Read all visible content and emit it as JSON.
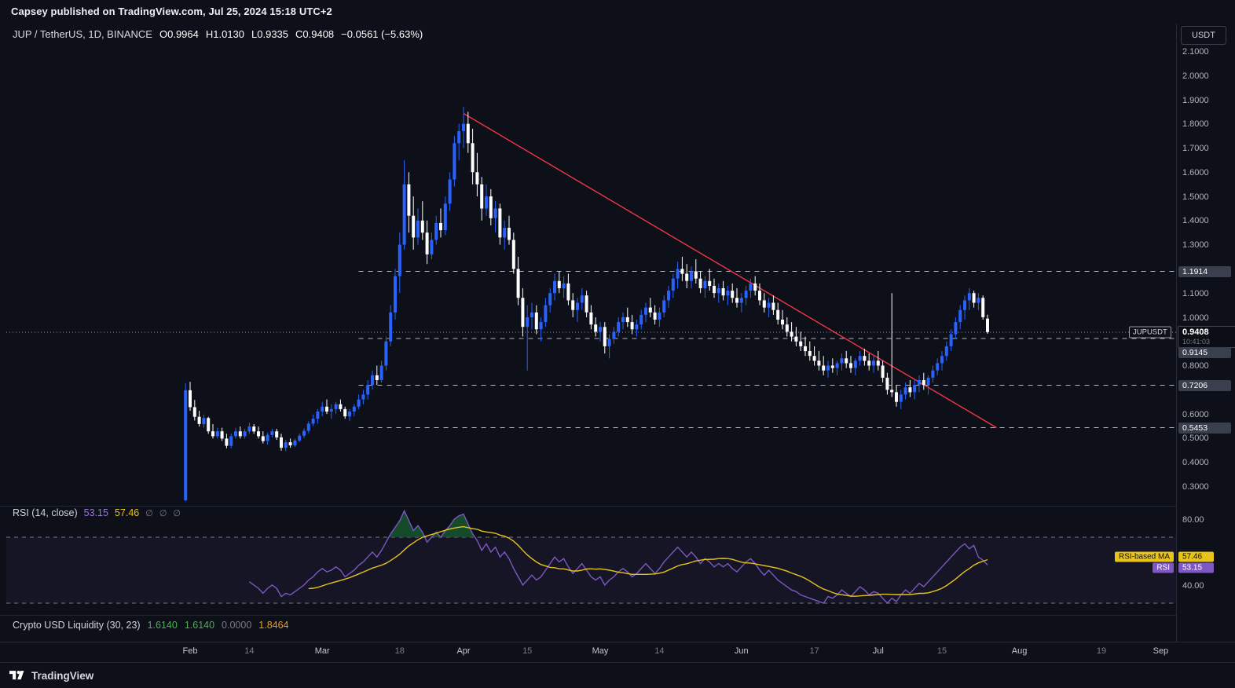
{
  "header": {
    "publish_line": "Capsey published on TradingView.com, Jul 25, 2024 15:18 UTC+2",
    "currency_button": "USDT"
  },
  "symbol": {
    "title": "JUP / TetherUS, 1D, BINANCE",
    "o": "O0.9964",
    "h": "H1.0130",
    "l": "L0.9335",
    "c": "C0.9408",
    "change": "−0.0561 (−5.63%)"
  },
  "price_label": {
    "symbol_tag": "JUPUSDT",
    "current": "0.9408",
    "countdown": "10:41:03"
  },
  "rsi_legend": {
    "title": "RSI (14, close)",
    "value": "53.15",
    "ma_value": "57.46",
    "ghosts": [
      "∅",
      "∅",
      "∅"
    ],
    "ma_badge": "RSI-based MA",
    "rsi_badge": "RSI"
  },
  "liquidity_legend": {
    "title": "Crypto USD Liquidity (30, 23)",
    "v1": "1.6140",
    "v2": "1.6140",
    "v3": "0.0000",
    "v4": "1.8464"
  },
  "footer": {
    "brand": "TradingView"
  },
  "chart_data": {
    "type": "candlestick",
    "symbol": "JUPUSDT",
    "timeframe": "1D",
    "exchange": "BINANCE",
    "start_date": "2024-01-31",
    "interval_days": 1,
    "price_axis": {
      "ticks": [
        2.1,
        2.0,
        1.9,
        1.8,
        1.7,
        1.6,
        1.5,
        1.4,
        1.3,
        1.1,
        1.0,
        0.8,
        0.6,
        0.5,
        0.4,
        0.3
      ]
    },
    "current_price": 0.9408,
    "countdown": "10:41:03",
    "levels": [
      1.1914,
      0.9145,
      0.7206,
      0.5453
    ],
    "levels_start_index": 38,
    "trendline": {
      "from_index": 61,
      "from_price": 1.845,
      "to_index": 178,
      "to_price": 0.545,
      "color": "#f23645"
    },
    "time_axis": [
      {
        "label": "Feb",
        "index": 1,
        "major": true
      },
      {
        "label": "14",
        "index": 14,
        "major": false
      },
      {
        "label": "Mar",
        "index": 30,
        "major": true
      },
      {
        "label": "18",
        "index": 47,
        "major": false
      },
      {
        "label": "Apr",
        "index": 61,
        "major": true
      },
      {
        "label": "15",
        "index": 75,
        "major": false
      },
      {
        "label": "May",
        "index": 91,
        "major": true
      },
      {
        "label": "14",
        "index": 104,
        "major": false
      },
      {
        "label": "Jun",
        "index": 122,
        "major": true
      },
      {
        "label": "17",
        "index": 138,
        "major": false
      },
      {
        "label": "Jul",
        "index": 152,
        "major": true
      },
      {
        "label": "15",
        "index": 166,
        "major": false
      },
      {
        "label": "Aug",
        "index": 183,
        "major": true
      },
      {
        "label": "19",
        "index": 201,
        "major": false
      },
      {
        "label": "Sep",
        "index": 214,
        "major": true
      }
    ],
    "candles": [
      [
        0.245,
        0.73,
        0.24,
        0.7
      ],
      [
        0.7,
        0.735,
        0.615,
        0.63
      ],
      [
        0.63,
        0.66,
        0.575,
        0.59
      ],
      [
        0.59,
        0.615,
        0.55,
        0.56
      ],
      [
        0.56,
        0.6,
        0.545,
        0.585
      ],
      [
        0.585,
        0.59,
        0.52,
        0.53
      ],
      [
        0.53,
        0.56,
        0.5,
        0.51
      ],
      [
        0.51,
        0.545,
        0.5,
        0.53
      ],
      [
        0.53,
        0.545,
        0.49,
        0.5
      ],
      [
        0.5,
        0.52,
        0.46,
        0.47
      ],
      [
        0.47,
        0.52,
        0.46,
        0.51
      ],
      [
        0.51,
        0.545,
        0.5,
        0.53
      ],
      [
        0.53,
        0.55,
        0.5,
        0.51
      ],
      [
        0.51,
        0.54,
        0.5,
        0.53
      ],
      [
        0.53,
        0.565,
        0.52,
        0.55
      ],
      [
        0.55,
        0.56,
        0.52,
        0.53
      ],
      [
        0.53,
        0.55,
        0.5,
        0.51
      ],
      [
        0.51,
        0.53,
        0.48,
        0.49
      ],
      [
        0.49,
        0.525,
        0.475,
        0.515
      ],
      [
        0.515,
        0.54,
        0.505,
        0.53
      ],
      [
        0.53,
        0.54,
        0.495,
        0.505
      ],
      [
        0.505,
        0.52,
        0.45,
        0.462
      ],
      [
        0.462,
        0.495,
        0.448,
        0.485
      ],
      [
        0.485,
        0.5,
        0.462,
        0.472
      ],
      [
        0.472,
        0.5,
        0.465,
        0.492
      ],
      [
        0.492,
        0.522,
        0.485,
        0.512
      ],
      [
        0.512,
        0.542,
        0.502,
        0.532
      ],
      [
        0.532,
        0.572,
        0.522,
        0.562
      ],
      [
        0.562,
        0.6,
        0.552,
        0.582
      ],
      [
        0.582,
        0.622,
        0.562,
        0.612
      ],
      [
        0.612,
        0.652,
        0.592,
        0.632
      ],
      [
        0.632,
        0.662,
        0.602,
        0.612
      ],
      [
        0.612,
        0.642,
        0.582,
        0.622
      ],
      [
        0.622,
        0.652,
        0.602,
        0.642
      ],
      [
        0.642,
        0.662,
        0.612,
        0.622
      ],
      [
        0.622,
        0.632,
        0.582,
        0.592
      ],
      [
        0.592,
        0.622,
        0.572,
        0.612
      ],
      [
        0.612,
        0.642,
        0.592,
        0.632
      ],
      [
        0.632,
        0.682,
        0.622,
        0.662
      ],
      [
        0.662,
        0.702,
        0.642,
        0.682
      ],
      [
        0.682,
        0.742,
        0.662,
        0.722
      ],
      [
        0.722,
        0.782,
        0.702,
        0.762
      ],
      [
        0.762,
        0.802,
        0.722,
        0.742
      ],
      [
        0.742,
        0.822,
        0.732,
        0.802
      ],
      [
        0.802,
        0.922,
        0.782,
        0.902
      ],
      [
        0.902,
        1.052,
        0.882,
        1.022
      ],
      [
        1.022,
        1.202,
        0.992,
        1.172
      ],
      [
        1.172,
        1.352,
        1.102,
        1.302
      ],
      [
        1.302,
        1.652,
        1.282,
        1.552
      ],
      [
        1.552,
        1.602,
        1.352,
        1.422
      ],
      [
        1.422,
        1.502,
        1.282,
        1.332
      ],
      [
        1.332,
        1.452,
        1.302,
        1.402
      ],
      [
        1.402,
        1.482,
        1.322,
        1.352
      ],
      [
        1.352,
        1.402,
        1.222,
        1.262
      ],
      [
        1.262,
        1.352,
        1.242,
        1.322
      ],
      [
        1.322,
        1.422,
        1.302,
        1.392
      ],
      [
        1.392,
        1.452,
        1.332,
        1.362
      ],
      [
        1.362,
        1.502,
        1.342,
        1.472
      ],
      [
        1.472,
        1.602,
        1.442,
        1.572
      ],
      [
        1.572,
        1.752,
        1.542,
        1.722
      ],
      [
        1.722,
        1.802,
        1.652,
        1.772
      ],
      [
        1.772,
        1.872,
        1.702,
        1.802
      ],
      [
        1.802,
        1.852,
        1.682,
        1.722
      ],
      [
        1.722,
        1.782,
        1.552,
        1.602
      ],
      [
        1.602,
        1.682,
        1.502,
        1.552
      ],
      [
        1.552,
        1.582,
        1.402,
        1.452
      ],
      [
        1.452,
        1.552,
        1.422,
        1.502
      ],
      [
        1.502,
        1.532,
        1.382,
        1.412
      ],
      [
        1.412,
        1.482,
        1.352,
        1.452
      ],
      [
        1.452,
        1.472,
        1.302,
        1.332
      ],
      [
        1.332,
        1.402,
        1.282,
        1.372
      ],
      [
        1.372,
        1.422,
        1.302,
        1.322
      ],
      [
        1.322,
        1.352,
        1.182,
        1.202
      ],
      [
        1.202,
        1.252,
        1.052,
        1.082
      ],
      [
        1.082,
        1.122,
        0.922,
        0.962
      ],
      [
        0.962,
        1.052,
        0.782,
        1.002
      ],
      [
        1.002,
        1.062,
        0.952,
        1.022
      ],
      [
        1.022,
        1.052,
        0.932,
        0.952
      ],
      [
        0.952,
        1.002,
        0.902,
        0.982
      ],
      [
        0.982,
        1.082,
        0.962,
        1.052
      ],
      [
        1.052,
        1.122,
        1.022,
        1.102
      ],
      [
        1.102,
        1.182,
        1.072,
        1.152
      ],
      [
        1.152,
        1.192,
        1.102,
        1.122
      ],
      [
        1.122,
        1.172,
        1.082,
        1.142
      ],
      [
        1.142,
        1.182,
        1.052,
        1.072
      ],
      [
        1.072,
        1.102,
        1.002,
        1.032
      ],
      [
        1.032,
        1.082,
        0.982,
        1.062
      ],
      [
        1.062,
        1.122,
        1.032,
        1.092
      ],
      [
        1.092,
        1.112,
        1.002,
        1.022
      ],
      [
        1.022,
        1.052,
        0.952,
        0.972
      ],
      [
        0.972,
        1.002,
        0.922,
        0.942
      ],
      [
        0.942,
        0.982,
        0.902,
        0.962
      ],
      [
        0.962,
        0.982,
        0.852,
        0.882
      ],
      [
        0.882,
        0.932,
        0.832,
        0.912
      ],
      [
        0.912,
        0.962,
        0.892,
        0.942
      ],
      [
        0.942,
        1.002,
        0.922,
        0.982
      ],
      [
        0.982,
        1.022,
        0.952,
        1.002
      ],
      [
        1.002,
        1.042,
        0.962,
        0.982
      ],
      [
        0.982,
        1.012,
        0.932,
        0.952
      ],
      [
        0.952,
        0.992,
        0.922,
        0.972
      ],
      [
        0.972,
        1.032,
        0.952,
        1.012
      ],
      [
        1.012,
        1.062,
        0.982,
        1.042
      ],
      [
        1.042,
        1.082,
        1.002,
        1.022
      ],
      [
        1.022,
        1.052,
        0.972,
        0.992
      ],
      [
        0.992,
        1.042,
        0.962,
        1.022
      ],
      [
        1.022,
        1.092,
        1.002,
        1.072
      ],
      [
        1.072,
        1.132,
        1.042,
        1.112
      ],
      [
        1.112,
        1.182,
        1.082,
        1.162
      ],
      [
        1.162,
        1.232,
        1.122,
        1.202
      ],
      [
        1.202,
        1.252,
        1.152,
        1.182
      ],
      [
        1.182,
        1.222,
        1.122,
        1.152
      ],
      [
        1.152,
        1.212,
        1.122,
        1.192
      ],
      [
        1.192,
        1.242,
        1.142,
        1.162
      ],
      [
        1.162,
        1.192,
        1.102,
        1.122
      ],
      [
        1.122,
        1.172,
        1.082,
        1.152
      ],
      [
        1.152,
        1.202,
        1.112,
        1.132
      ],
      [
        1.132,
        1.162,
        1.082,
        1.102
      ],
      [
        1.102,
        1.142,
        1.062,
        1.122
      ],
      [
        1.122,
        1.152,
        1.072,
        1.092
      ],
      [
        1.092,
        1.132,
        1.052,
        1.112
      ],
      [
        1.112,
        1.142,
        1.062,
        1.082
      ],
      [
        1.082,
        1.122,
        1.042,
        1.062
      ],
      [
        1.062,
        1.102,
        1.022,
        1.082
      ],
      [
        1.082,
        1.132,
        1.052,
        1.112
      ],
      [
        1.112,
        1.162,
        1.082,
        1.142
      ],
      [
        1.142,
        1.172,
        1.092,
        1.112
      ],
      [
        1.112,
        1.142,
        1.052,
        1.072
      ],
      [
        1.072,
        1.102,
        1.022,
        1.042
      ],
      [
        1.042,
        1.082,
        1.002,
        1.062
      ],
      [
        1.062,
        1.092,
        1.012,
        1.032
      ],
      [
        1.032,
        1.062,
        0.972,
        0.992
      ],
      [
        0.992,
        1.032,
        0.952,
        0.972
      ],
      [
        0.972,
        1.002,
        0.922,
        0.942
      ],
      [
        0.942,
        0.982,
        0.902,
        0.922
      ],
      [
        0.922,
        0.962,
        0.882,
        0.902
      ],
      [
        0.902,
        0.942,
        0.862,
        0.882
      ],
      [
        0.882,
        0.922,
        0.842,
        0.862
      ],
      [
        0.862,
        0.902,
        0.822,
        0.842
      ],
      [
        0.842,
        0.882,
        0.802,
        0.822
      ],
      [
        0.822,
        0.862,
        0.782,
        0.802
      ],
      [
        0.802,
        0.842,
        0.762,
        0.782
      ],
      [
        0.782,
        0.822,
        0.752,
        0.802
      ],
      [
        0.802,
        0.832,
        0.772,
        0.792
      ],
      [
        0.792,
        0.822,
        0.762,
        0.812
      ],
      [
        0.812,
        0.852,
        0.782,
        0.832
      ],
      [
        0.832,
        0.862,
        0.792,
        0.812
      ],
      [
        0.812,
        0.842,
        0.772,
        0.792
      ],
      [
        0.792,
        0.832,
        0.762,
        0.822
      ],
      [
        0.822,
        0.862,
        0.802,
        0.842
      ],
      [
        0.842,
        0.872,
        0.802,
        0.822
      ],
      [
        0.822,
        0.852,
        0.782,
        0.802
      ],
      [
        0.802,
        0.842,
        0.772,
        0.822
      ],
      [
        0.822,
        0.862,
        0.782,
        0.802
      ],
      [
        0.802,
        0.822,
        0.732,
        0.752
      ],
      [
        0.752,
        0.772,
        0.682,
        0.702
      ],
      [
        0.702,
        1.102,
        0.672,
        0.692
      ],
      [
        0.692,
        0.722,
        0.632,
        0.652
      ],
      [
        0.652,
        0.702,
        0.622,
        0.682
      ],
      [
        0.682,
        0.732,
        0.662,
        0.712
      ],
      [
        0.712,
        0.742,
        0.672,
        0.692
      ],
      [
        0.692,
        0.742,
        0.662,
        0.722
      ],
      [
        0.722,
        0.762,
        0.692,
        0.742
      ],
      [
        0.742,
        0.772,
        0.702,
        0.722
      ],
      [
        0.722,
        0.762,
        0.682,
        0.752
      ],
      [
        0.752,
        0.802,
        0.732,
        0.782
      ],
      [
        0.782,
        0.832,
        0.762,
        0.812
      ],
      [
        0.812,
        0.862,
        0.782,
        0.842
      ],
      [
        0.842,
        0.902,
        0.822,
        0.882
      ],
      [
        0.882,
        0.952,
        0.862,
        0.932
      ],
      [
        0.932,
        1.002,
        0.912,
        0.982
      ],
      [
        0.982,
        1.052,
        0.952,
        1.032
      ],
      [
        1.032,
        1.092,
        0.992,
        1.072
      ],
      [
        1.072,
        1.122,
        1.032,
        1.102
      ],
      [
        1.102,
        1.112,
        1.042,
        1.062
      ],
      [
        1.062,
        1.102,
        1.032,
        1.082
      ],
      [
        1.082,
        1.092,
        0.992,
        1.002
      ],
      [
        0.9964,
        1.013,
        0.9335,
        0.9408
      ]
    ],
    "rsi": {
      "start_index": 14,
      "period": 14,
      "ma_period": 14,
      "upper_band": 70,
      "lower_band": 30,
      "scale_tick_labels": [
        "80.00",
        "40.00"
      ],
      "scale_tick_values": [
        80,
        40
      ],
      "current": "53.15",
      "ma_current": "57.46",
      "values": [
        43,
        41,
        39,
        36,
        39,
        41,
        39,
        34,
        36,
        35,
        37,
        39,
        41,
        44,
        46,
        49,
        51,
        49,
        50,
        52,
        50,
        46,
        48,
        50,
        53,
        55,
        58,
        61,
        58,
        62,
        67,
        72,
        76,
        80,
        86,
        80,
        74,
        77,
        73,
        67,
        70,
        73,
        70,
        74,
        77,
        81,
        83,
        84,
        78,
        72,
        68,
        62,
        66,
        61,
        64,
        58,
        61,
        57,
        51,
        46,
        41,
        44,
        47,
        44,
        46,
        50,
        54,
        58,
        55,
        57,
        52,
        48,
        51,
        54,
        50,
        46,
        44,
        46,
        41,
        44,
        46,
        49,
        51,
        49,
        46,
        48,
        51,
        54,
        51,
        48,
        51,
        55,
        58,
        61,
        64,
        61,
        58,
        61,
        58,
        54,
        57,
        55,
        52,
        54,
        52,
        54,
        51,
        49,
        52,
        55,
        57,
        54,
        50,
        47,
        50,
        47,
        44,
        42,
        40,
        38,
        37,
        35,
        34,
        33,
        32,
        31,
        30,
        34,
        33,
        35,
        38,
        36,
        34,
        37,
        40,
        38,
        35,
        37,
        36,
        33,
        30,
        33,
        31,
        35,
        38,
        36,
        39,
        42,
        40,
        43,
        46,
        49,
        52,
        55,
        58,
        61,
        64,
        66,
        63,
        65,
        58,
        56,
        53.15
      ]
    },
    "colors": {
      "up": "#2962ff",
      "down": "#ffffff",
      "trendline": "#f23645",
      "level_line": "#b2b5be",
      "current_line": "#9598a1",
      "rsi_line": "#7e57c2",
      "rsi_ma_line": "#e7c31c",
      "rsi_overbought_fill": "#14532d",
      "rsi_band_fill": "rgba(126,87,194,0.08)"
    }
  }
}
